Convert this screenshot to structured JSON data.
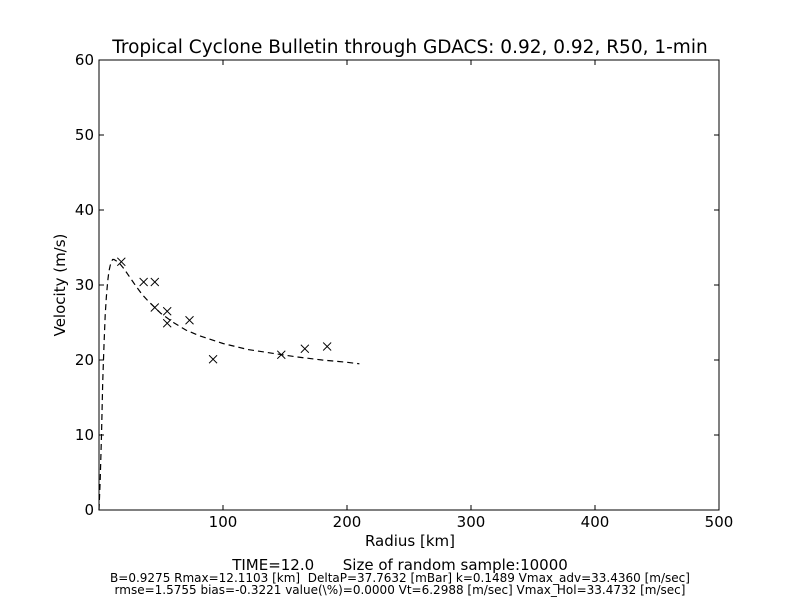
{
  "chart_data": {
    "type": "scatter",
    "title": "Tropical Cyclone Bulletin through GDACS: 0.92, 0.92, R50, 1-min",
    "xlabel": "Radius [km]",
    "ylabel": "Velocity (m/s)",
    "xlim": [
      0,
      500
    ],
    "ylim": [
      0,
      60
    ],
    "xticks": [
      100,
      200,
      300,
      400,
      500
    ],
    "yticks": [
      0,
      10,
      20,
      30,
      40,
      50,
      60
    ],
    "grid": false,
    "observations": {
      "marker": "x",
      "points": [
        [
          18,
          33.1
        ],
        [
          36,
          30.4
        ],
        [
          45,
          30.4
        ],
        [
          45,
          27.0
        ],
        [
          55,
          26.5
        ],
        [
          55,
          24.9
        ],
        [
          73,
          25.3
        ],
        [
          92,
          20.1
        ],
        [
          147,
          20.7
        ],
        [
          166,
          21.5
        ],
        [
          184,
          21.8
        ]
      ]
    },
    "fitted_profile": {
      "style": "dashed",
      "points": [
        [
          0,
          0
        ],
        [
          1,
          4
        ],
        [
          2,
          10
        ],
        [
          3,
          17
        ],
        [
          4,
          22
        ],
        [
          5,
          26
        ],
        [
          6,
          28.5
        ],
        [
          7,
          30.5
        ],
        [
          8,
          31.8
        ],
        [
          9,
          32.6
        ],
        [
          10,
          33.1
        ],
        [
          11,
          33.4
        ],
        [
          12.1,
          33.4
        ],
        [
          14,
          33.2
        ],
        [
          17,
          32.8
        ],
        [
          20,
          32.2
        ],
        [
          25,
          31.0
        ],
        [
          30,
          29.8
        ],
        [
          35,
          28.7
        ],
        [
          40,
          27.8
        ],
        [
          50,
          26.2
        ],
        [
          60,
          25.0
        ],
        [
          70,
          24.0
        ],
        [
          80,
          23.3
        ],
        [
          100,
          22.2
        ],
        [
          120,
          21.4
        ],
        [
          140,
          20.9
        ],
        [
          160,
          20.4
        ],
        [
          180,
          20.0
        ],
        [
          200,
          19.7
        ],
        [
          210,
          19.5
        ]
      ]
    },
    "footer": {
      "line1": "TIME=12.0      Size of random sample:10000",
      "line2": "B=0.9275 Rmax=12.1103 [km]  DeltaP=37.7632 [mBar] k=0.1489 Vmax_adv=33.4360 [m/sec]",
      "line3": "rmse=1.5755 bias=-0.3221 value(\\%)=0.0000 Vt=6.2988 [m/sec] Vmax_Hol=33.4732 [m/sec]"
    }
  }
}
